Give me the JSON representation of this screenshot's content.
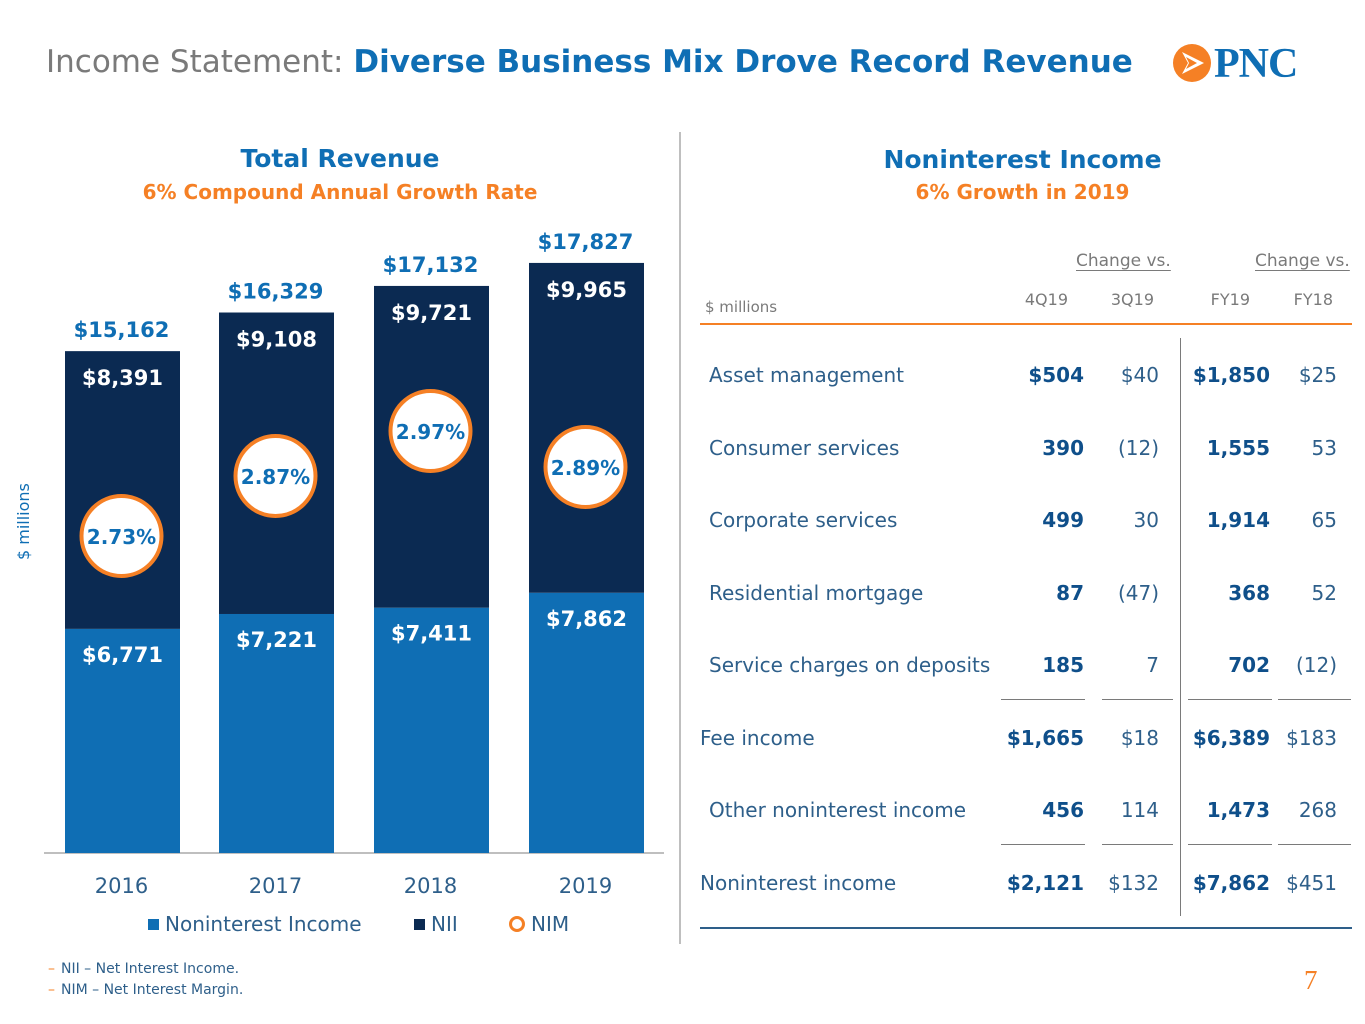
{
  "header": {
    "title_prefix": "Income Statement: ",
    "title_main": "Diverse Business Mix Drove Record Revenue",
    "logo_text": "PNC"
  },
  "left": {
    "heading": "Total Revenue",
    "subheading": "6% Compound Annual Growth Rate",
    "y_axis_label": "$ millions",
    "legend": {
      "nonint": "Noninterest Income",
      "nii": "NII",
      "nim": "NIM"
    }
  },
  "chart_data": {
    "type": "bar",
    "stacked": true,
    "categories": [
      "2016",
      "2017",
      "2018",
      "2019"
    ],
    "series": [
      {
        "name": "Noninterest Income",
        "values": [
          6771,
          7221,
          7411,
          7862
        ],
        "labels": [
          "$6,771",
          "$7,221",
          "$7,411",
          "$7,862"
        ],
        "color": "#0f6eb4"
      },
      {
        "name": "NII",
        "values": [
          8391,
          9108,
          9721,
          9965
        ],
        "labels": [
          "$8,391",
          "$9,108",
          "$9,721",
          "$9,965"
        ],
        "color": "#0b2a52"
      }
    ],
    "totals": [
      15162,
      16329,
      17132,
      17827
    ],
    "total_labels": [
      "$15,162",
      "$16,329",
      "$17,132",
      "$17,827"
    ],
    "nim": {
      "name": "NIM",
      "values": [
        2.73,
        2.87,
        2.97,
        2.89
      ],
      "labels": [
        "2.73%",
        "2.87%",
        "2.97%",
        "2.89%"
      ],
      "color": "#f58025"
    },
    "ylim": [
      0,
      20000
    ],
    "ylabel": "$ millions",
    "grid": false,
    "legend_position": "bottom"
  },
  "right": {
    "heading": "Noninterest Income",
    "subheading": "6% Growth in 2019",
    "units": "$ millions",
    "change_label_1": "Change vs.",
    "change_label_2": "Change vs.",
    "columns": [
      "4Q19",
      "3Q19",
      "FY19",
      "FY18"
    ],
    "rows": [
      {
        "label": "Asset management",
        "q": "$504",
        "qc": "$40",
        "fy": "$1,850",
        "fyc": "$25",
        "indent": true
      },
      {
        "label": "Consumer services",
        "q": "390",
        "qc": "(12)",
        "fy": "1,555",
        "fyc": "53",
        "indent": true
      },
      {
        "label": "Corporate services",
        "q": "499",
        "qc": "30",
        "fy": "1,914",
        "fyc": "65",
        "indent": true
      },
      {
        "label": "Residential mortgage",
        "q": "87",
        "qc": "(47)",
        "fy": "368",
        "fyc": "52",
        "indent": true
      },
      {
        "label": "Service charges on deposits",
        "q": "185",
        "qc": "7",
        "fy": "702",
        "fyc": "(12)",
        "indent": true
      },
      {
        "label": "Fee income",
        "q": "$1,665",
        "qc": "$18",
        "fy": "$6,389",
        "fyc": "$183",
        "indent": false
      },
      {
        "label": "Other noninterest income",
        "q": "456",
        "qc": "114",
        "fy": "1,473",
        "fyc": "268",
        "indent": true
      },
      {
        "label": "Noninterest income",
        "q": "$2,121",
        "qc": "$132",
        "fy": "$7,862",
        "fyc": "$451",
        "indent": false
      }
    ]
  },
  "footnotes": [
    "NII – Net Interest Income.",
    "NIM – Net Interest Margin."
  ],
  "footnote_dash": "–",
  "page_number": "7",
  "colors": {
    "brand_blue": "#0f6eb4",
    "navy": "#0b2a52",
    "orange": "#f58025",
    "text": "#2e5f8a"
  }
}
